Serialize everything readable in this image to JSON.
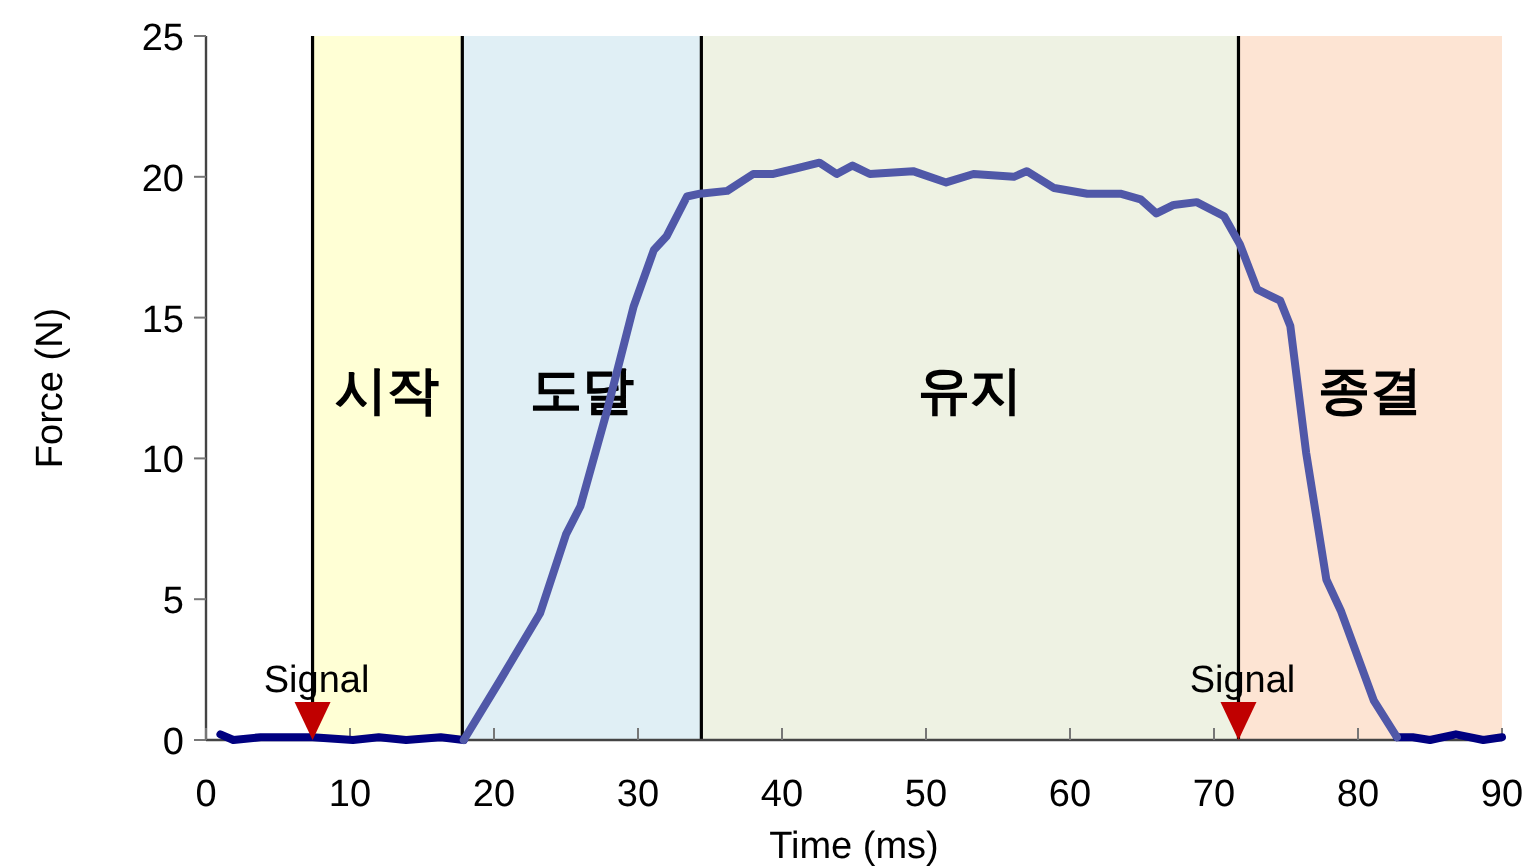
{
  "chart_data": {
    "type": "line",
    "xlabel": "Time (ms)",
    "ylabel": "Force (N)",
    "xlim": [
      0,
      90
    ],
    "xticks": [
      0,
      10,
      20,
      30,
      40,
      50,
      60,
      70,
      80,
      90
    ],
    "ylim": [
      0,
      25
    ],
    "yticks": [
      0,
      5,
      10,
      15,
      20,
      25
    ],
    "grid": false,
    "marker": "none",
    "line_style": "solid",
    "series": [
      {
        "color": "#000080",
        "x": [
          1.0,
          1.9,
          3.8,
          7.4,
          10.2,
          12.0,
          13.9,
          16.3,
          17.9
        ],
        "values": [
          0.2,
          0,
          0.1,
          0.1,
          0,
          0.1,
          0,
          0.1,
          0
        ]
      },
      {
        "color": "#000080",
        "x": [
          82.7,
          83.8,
          85.0,
          86.8,
          88.7,
          90.0
        ],
        "values": [
          0.1,
          0.1,
          0,
          0.2,
          0,
          0.1
        ]
      },
      {
        "color": "#5058a8",
        "x": [
          17.9,
          20.4,
          23.2,
          25.0,
          26.0,
          27.8,
          29.7,
          31.1,
          32.0,
          33.4,
          34.3,
          36.2,
          38.0,
          39.4,
          41.0,
          42.6,
          43.8,
          44.9,
          46.1,
          49.1,
          51.4,
          53.3,
          56.1,
          57.0,
          58.9,
          61.2,
          63.5,
          64.9,
          66.0,
          67.2,
          68.8,
          70.7,
          71.8,
          73.0,
          74.6,
          75.3,
          76.4,
          77.8,
          78.8,
          81.1,
          82.7
        ],
        "values": [
          0,
          2.1,
          4.5,
          7.3,
          8.3,
          11.6,
          15.4,
          17.4,
          17.9,
          19.3,
          19.4,
          19.5,
          20.1,
          20.1,
          20.3,
          20.5,
          20.1,
          20.4,
          20.1,
          20.2,
          19.8,
          20.1,
          20.0,
          20.2,
          19.6,
          19.4,
          19.4,
          19.2,
          18.7,
          19.0,
          19.1,
          18.6,
          17.6,
          16.0,
          15.6,
          14.7,
          10.2,
          5.7,
          4.6,
          1.4,
          0.1
        ]
      }
    ],
    "bands": [
      {
        "axis": "x",
        "from": 7.4,
        "to": 17.8,
        "label": "시작",
        "color": "#ffffd5"
      },
      {
        "axis": "x",
        "from": 17.8,
        "to": 34.4,
        "label": "도달",
        "color": "#e0eff5"
      },
      {
        "axis": "x",
        "from": 34.4,
        "to": 71.7,
        "label": "유지",
        "color": "#eef2e3"
      },
      {
        "axis": "x",
        "from": 71.7,
        "to": 90,
        "label": "종결",
        "color": "#fde4d3"
      }
    ],
    "ref_lines": [
      {
        "axis": "x",
        "value": 7.4,
        "color": "#000000"
      },
      {
        "axis": "x",
        "value": 17.8,
        "color": "#000000"
      },
      {
        "axis": "x",
        "value": 34.4,
        "color": "#000000"
      },
      {
        "axis": "x",
        "value": 71.7,
        "color": "#000000"
      }
    ],
    "annotations": [
      {
        "text": "Signal",
        "x": 7.4,
        "y": 0
      },
      {
        "text": "Signal",
        "x": 71.7,
        "y": 0
      }
    ]
  }
}
